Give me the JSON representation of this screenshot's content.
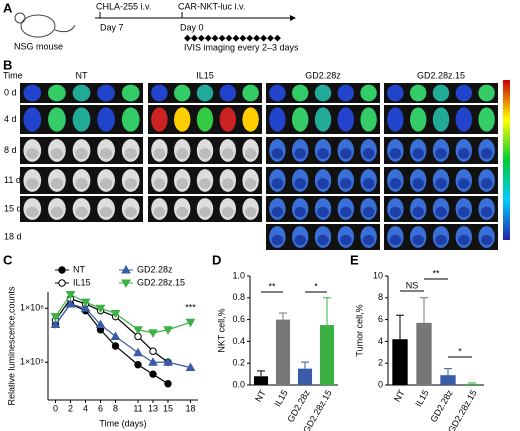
{
  "panel_labels": [
    "A",
    "B",
    "C",
    "D",
    "E"
  ],
  "panel_a": {
    "mouse_label": "NSG mouse",
    "events": [
      {
        "label": "CHLA-255 i.v.",
        "day": "Day 7"
      },
      {
        "label": "CAR-NKT-luc i.v.",
        "day": "Day 0"
      }
    ],
    "imaging": "IVIS imaging every 2–3 days"
  },
  "panel_b": {
    "time_label": "Time",
    "groups": [
      "NT",
      "IL15",
      "GD2.28z",
      "GD2.28z.15"
    ],
    "rows": [
      "0 d",
      "4 d",
      "8 d",
      "11 d",
      "15 d",
      "18 d"
    ]
  },
  "chart_data": [
    {
      "type": "line",
      "ylabel": "Relative luminescence,counts",
      "xlabel": "Time (days)",
      "log_y": true,
      "x": [
        0,
        2,
        4,
        6,
        8,
        11,
        13,
        15,
        18
      ],
      "xlim": [
        -1,
        19
      ],
      "xticks": [
        0,
        2,
        4,
        6,
        8,
        11,
        13,
        15,
        18
      ],
      "ylim": [
        20000,
        2000000
      ],
      "yticks": [
        {
          "value": 100000,
          "label": "1×10⁵"
        },
        {
          "value": 1000000,
          "label": "1×10⁶"
        }
      ],
      "series": [
        {
          "name": "NT",
          "color": "#000000",
          "marker": "circle",
          "values": [
            500000,
            1200000,
            900000,
            400000,
            200000,
            90000,
            60000,
            40000,
            null
          ]
        },
        {
          "name": "IL15",
          "color": "#000000",
          "marker": "open-circle",
          "values": [
            600000,
            1500000,
            1200000,
            900000,
            700000,
            300000,
            160000,
            100000,
            null
          ]
        },
        {
          "name": "GD2.28z",
          "color": "#3a5ca8",
          "marker": "triangle-up",
          "values": [
            500000,
            1200000,
            1000000,
            500000,
            300000,
            150000,
            100000,
            100000,
            80000
          ]
        },
        {
          "name": "GD2.28z.15",
          "color": "#3cb043",
          "marker": "triangle-down",
          "values": [
            700000,
            1800000,
            1300000,
            1000000,
            800000,
            400000,
            350000,
            400000,
            550000
          ]
        }
      ],
      "annotations": [
        "***"
      ]
    },
    {
      "type": "bar",
      "ylabel": "NKT cell,%",
      "categories": [
        "NT",
        "IL15",
        "GD2.28z",
        "GD2.28z.15"
      ],
      "values": [
        0.08,
        0.6,
        0.15,
        0.55
      ],
      "errors": [
        0.05,
        0.06,
        0.06,
        0.25
      ],
      "colors": [
        "#000000",
        "#777777",
        "#3a5ca8",
        "#3cb043"
      ],
      "ylim": [
        0,
        1
      ],
      "yticks": [
        {
          "value": 0,
          "label": "0.0"
        },
        0.2,
        0.4,
        0.6,
        0.8,
        {
          "value": 1,
          "label": "1.0"
        }
      ],
      "annotations": [
        "**",
        "*"
      ]
    },
    {
      "type": "bar",
      "ylabel": "Tumor cell,%",
      "categories": [
        "NT",
        "IL15",
        "GD2.28z",
        "GD2.28z.15"
      ],
      "values": [
        4.2,
        5.7,
        0.9,
        0.1
      ],
      "errors": [
        2.2,
        2.3,
        0.6,
        0.1
      ],
      "colors": [
        "#000000",
        "#777777",
        "#3a5ca8",
        "#3cb043"
      ],
      "ylim": [
        0,
        10
      ],
      "yticks": [
        0,
        2,
        4,
        6,
        8,
        10
      ],
      "annotations": [
        "NS",
        "**",
        "*"
      ]
    }
  ]
}
